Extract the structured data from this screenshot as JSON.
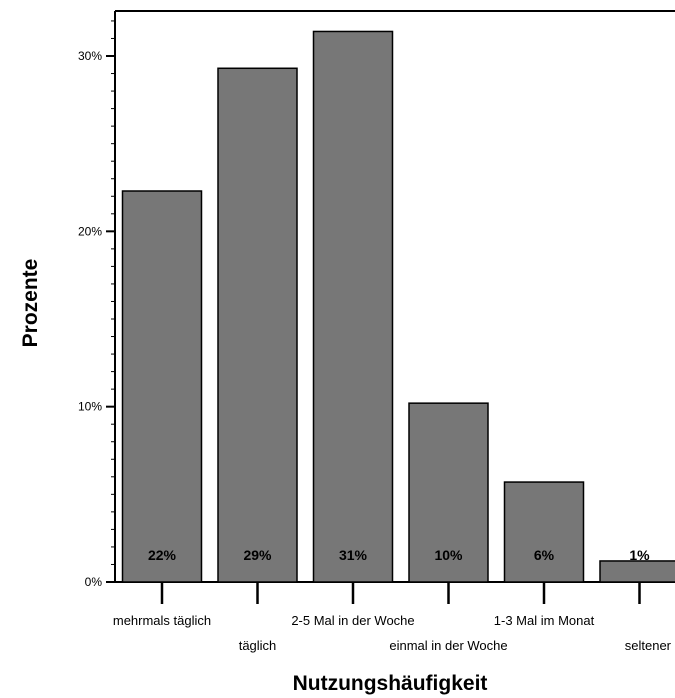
{
  "chart_data": {
    "type": "bar",
    "categories": [
      "mehrmals täglich",
      "täglich",
      "2-5 Mal in der Woche",
      "einmal in der Woche",
      "1-3 Mal im Monat",
      "seltener"
    ],
    "values": [
      22.3,
      29.3,
      31.4,
      10.2,
      5.7,
      1.2
    ],
    "data_labels": [
      "22%",
      "29%",
      "31%",
      "10%",
      "6%",
      "1%"
    ],
    "xlabel": "Nutzungshäufigkeit",
    "ylabel": "Prozente",
    "yticks": [
      {
        "value": 0,
        "label": "0%"
      },
      {
        "value": 10,
        "label": "10%"
      },
      {
        "value": 20,
        "label": "20%"
      },
      {
        "value": 30,
        "label": "30%"
      }
    ],
    "ylim": [
      0,
      32.5
    ],
    "bar_color": "#777777",
    "grid": false,
    "legend": "none"
  }
}
